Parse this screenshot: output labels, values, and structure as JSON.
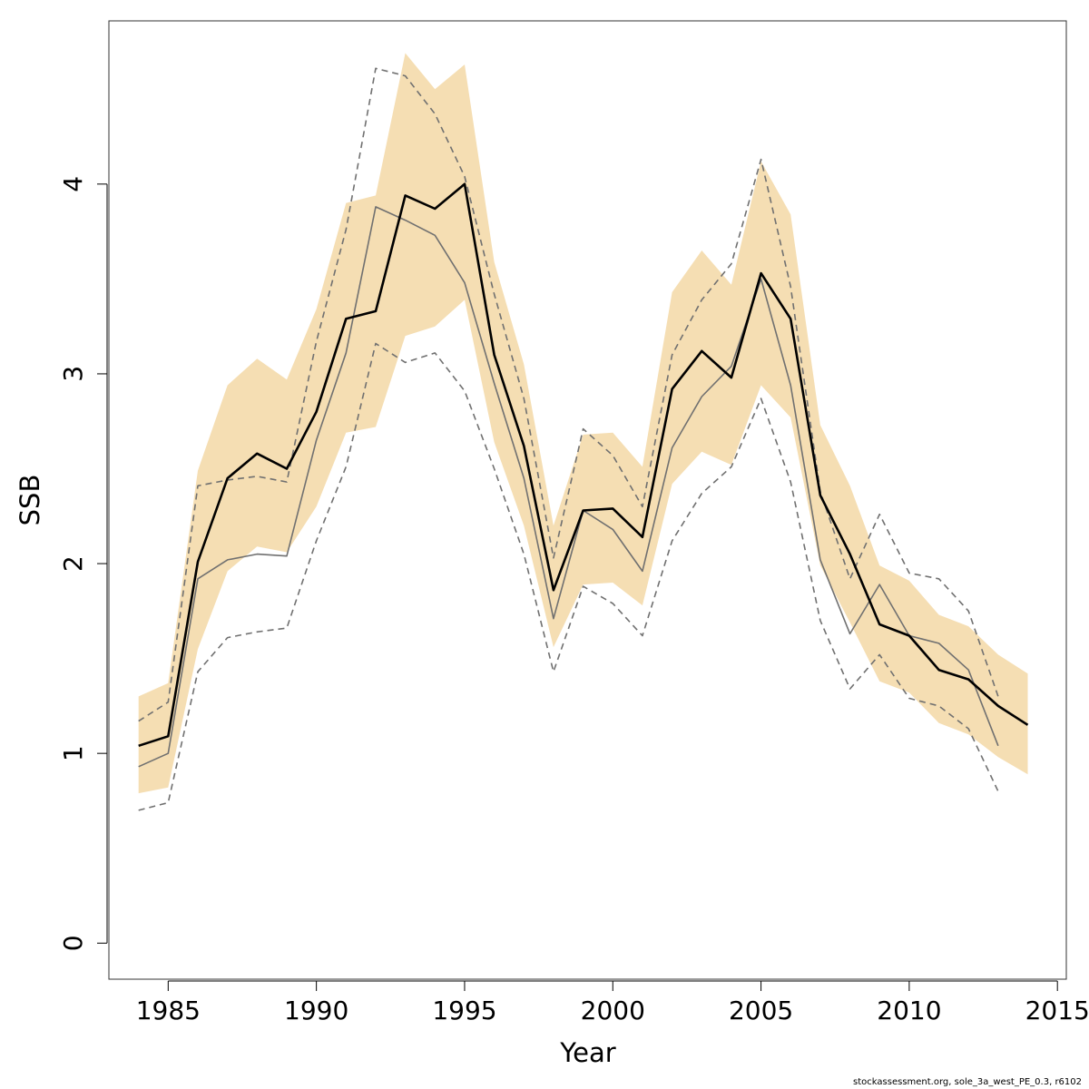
{
  "chart_data": {
    "type": "line",
    "xlabel": "Year",
    "ylabel": "SSB",
    "xlim": [
      1983,
      2015.3
    ],
    "ylim": [
      -0.19,
      4.86
    ],
    "x_ticks": [
      1985,
      1990,
      1995,
      2000,
      2005,
      2010,
      2015
    ],
    "y_ticks": [
      0,
      1,
      2,
      3,
      4
    ],
    "grid": false,
    "colors": {
      "band": "#f5deb3",
      "estimate": "#000000",
      "retro": "#707070",
      "bounds": "#707070"
    },
    "estimate": {
      "x": [
        1984,
        1985,
        1986,
        1987,
        1988,
        1989,
        1990,
        1991,
        1992,
        1993,
        1994,
        1995,
        1996,
        1997,
        1998,
        1999,
        2000,
        2001,
        2002,
        2003,
        2004,
        2005,
        2006,
        2007,
        2008,
        2009,
        2010,
        2011,
        2012,
        2013,
        2014
      ],
      "y": [
        1.04,
        1.09,
        2.01,
        2.45,
        2.58,
        2.5,
        2.8,
        3.29,
        3.33,
        3.94,
        3.87,
        4.0,
        3.1,
        2.62,
        1.86,
        2.28,
        2.29,
        2.14,
        2.92,
        3.12,
        2.98,
        3.53,
        3.29,
        2.36,
        2.05,
        1.68,
        1.62,
        1.44,
        1.39,
        1.25,
        1.15
      ]
    },
    "band": {
      "x": [
        1984,
        1985,
        1986,
        1987,
        1988,
        1989,
        1990,
        1991,
        1992,
        1993,
        1994,
        1995,
        1996,
        1997,
        1998,
        1999,
        2000,
        2001,
        2002,
        2003,
        2004,
        2005,
        2006,
        2007,
        2008,
        2009,
        2010,
        2011,
        2012,
        2013,
        2014
      ],
      "lower": [
        0.79,
        0.82,
        1.55,
        1.96,
        2.09,
        2.06,
        2.3,
        2.69,
        2.72,
        3.2,
        3.25,
        3.39,
        2.64,
        2.2,
        1.56,
        1.89,
        1.9,
        1.78,
        2.42,
        2.59,
        2.52,
        2.94,
        2.77,
        1.99,
        1.69,
        1.38,
        1.32,
        1.16,
        1.1,
        0.98,
        0.89
      ],
      "upper": [
        1.3,
        1.37,
        2.49,
        2.94,
        3.08,
        2.97,
        3.34,
        3.9,
        3.94,
        4.69,
        4.5,
        4.63,
        3.59,
        3.05,
        2.2,
        2.68,
        2.69,
        2.51,
        3.43,
        3.65,
        3.47,
        4.12,
        3.84,
        2.73,
        2.41,
        1.99,
        1.91,
        1.73,
        1.67,
        1.52,
        1.42
      ]
    },
    "retro": {
      "x": [
        1984,
        1985,
        1986,
        1987,
        1988,
        1989,
        1990,
        1991,
        1992,
        1993,
        1994,
        1995,
        1996,
        1997,
        1998,
        1999,
        2000,
        2001,
        2002,
        2003,
        2004,
        2005,
        2006,
        2007,
        2008,
        2009,
        2010,
        2011,
        2012,
        2013
      ],
      "y": [
        0.93,
        1.0,
        1.92,
        2.02,
        2.05,
        2.04,
        2.65,
        3.11,
        3.88,
        3.81,
        3.73,
        3.48,
        2.95,
        2.45,
        1.71,
        2.28,
        2.18,
        1.96,
        2.61,
        2.88,
        3.04,
        3.5,
        2.94,
        2.02,
        1.63,
        1.89,
        1.62,
        1.58,
        1.44,
        1.04
      ]
    },
    "upper_dashed": {
      "x": [
        1984,
        1985,
        1986,
        1987,
        1988,
        1989,
        1990,
        1991,
        1992,
        1993,
        1994,
        1995,
        1996,
        1997,
        1998,
        1999,
        2000,
        2001,
        2002,
        2003,
        2004,
        2005,
        2006,
        2007,
        2008,
        2009,
        2010,
        2011,
        2012,
        2013
      ],
      "y": [
        1.17,
        1.27,
        2.41,
        2.44,
        2.46,
        2.43,
        3.17,
        3.76,
        4.61,
        4.57,
        4.37,
        4.04,
        3.42,
        2.87,
        2.03,
        2.71,
        2.57,
        2.3,
        3.1,
        3.39,
        3.58,
        4.13,
        3.46,
        2.38,
        1.92,
        2.26,
        1.95,
        1.92,
        1.75,
        1.3
      ]
    },
    "lower_dashed": {
      "x": [
        1984,
        1985,
        1986,
        1987,
        1988,
        1989,
        1990,
        1991,
        1992,
        1993,
        1994,
        1995,
        1996,
        1997,
        1998,
        1999,
        2000,
        2001,
        2002,
        2003,
        2004,
        2005,
        2006,
        2007,
        2008,
        2009,
        2010,
        2011,
        2012,
        2013
      ],
      "y": [
        0.7,
        0.74,
        1.43,
        1.61,
        1.64,
        1.66,
        2.12,
        2.51,
        3.16,
        3.06,
        3.11,
        2.91,
        2.5,
        2.05,
        1.43,
        1.88,
        1.79,
        1.62,
        2.12,
        2.37,
        2.51,
        2.87,
        2.43,
        1.7,
        1.34,
        1.52,
        1.29,
        1.25,
        1.13,
        0.8
      ]
    }
  },
  "footer": {
    "text": "stockassessment.org, sole_3a_west_PE_0.3, r6102"
  }
}
